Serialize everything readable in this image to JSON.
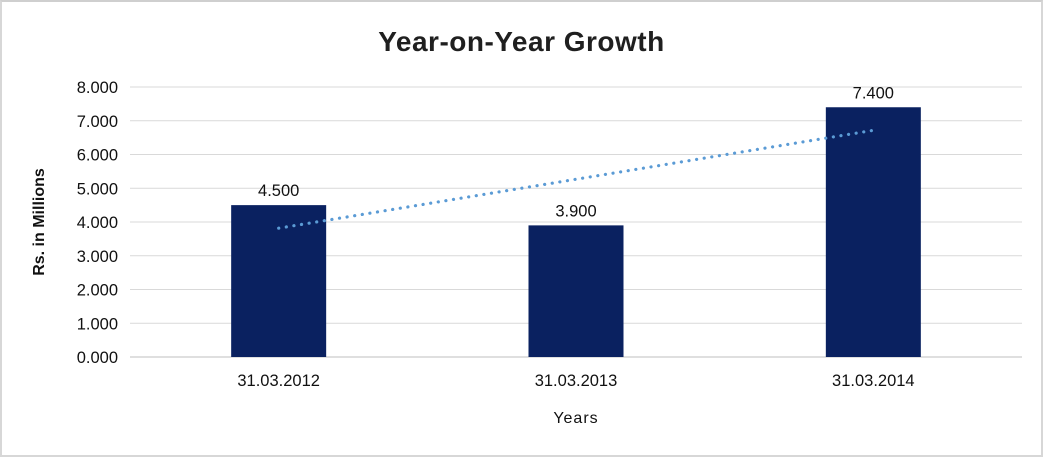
{
  "chart_data": {
    "type": "bar",
    "title": "Year-on-Year Growth",
    "xlabel": "Years",
    "ylabel": "Rs. in Millions",
    "categories": [
      "31.03.2012",
      "31.03.2013",
      "31.03.2014"
    ],
    "values": [
      4.5,
      3.9,
      7.4
    ],
    "value_labels": [
      "4.500",
      "3.900",
      "7.400"
    ],
    "y_tick_values": [
      0,
      1,
      2,
      3,
      4,
      5,
      6,
      7,
      8
    ],
    "y_tick_labels": [
      "0.000",
      "1.000",
      "2.000",
      "3.000",
      "4.000",
      "5.000",
      "6.000",
      "7.000",
      "8.000"
    ],
    "ylim": [
      0,
      8
    ],
    "grid": true,
    "legend": "none",
    "bar_color": "#0a2160",
    "trendline": {
      "type": "linear",
      "style": "dotted",
      "color": "#5b9bd5"
    },
    "gridline_color": "#d9d9d9",
    "baseline_color": "#bfbfbf",
    "text_color": "#111111"
  }
}
